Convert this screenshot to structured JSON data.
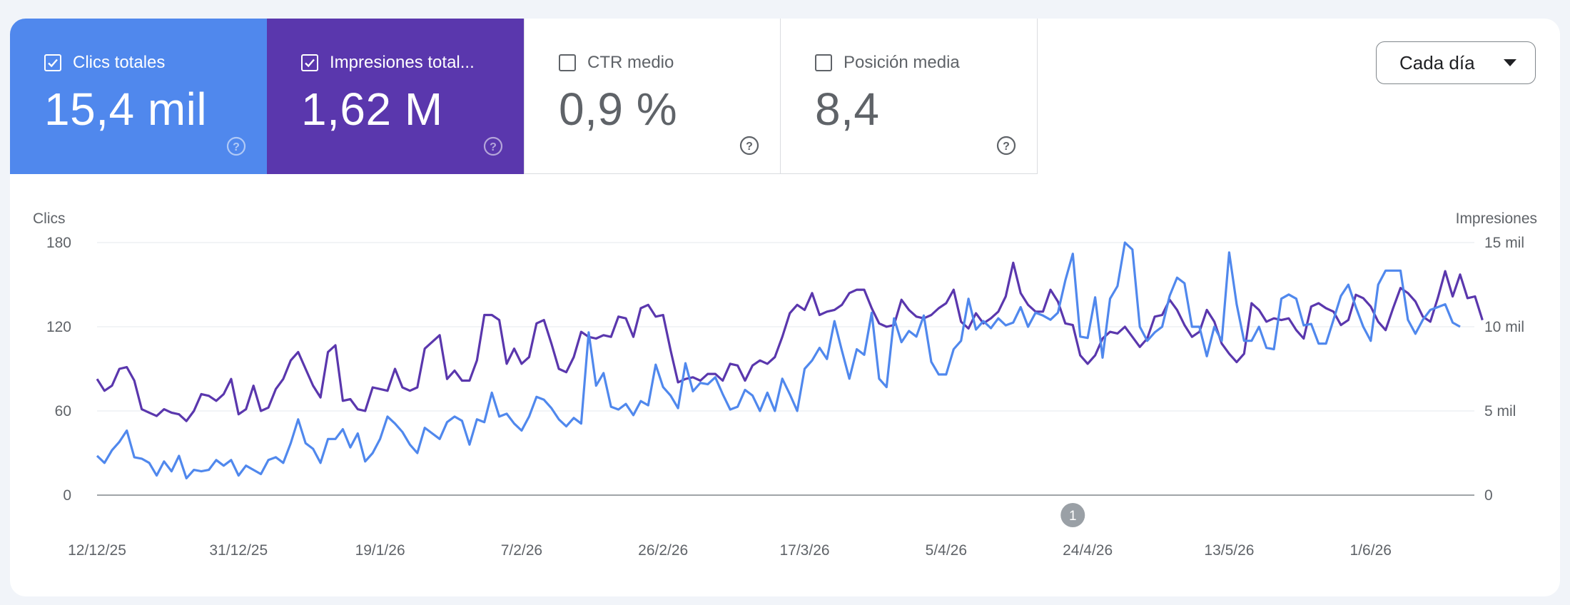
{
  "metrics": [
    {
      "label": "Clics totales",
      "value": "15,4 mil",
      "checked": true
    },
    {
      "label": "Impresiones total...",
      "value": "1,62 M",
      "checked": true
    },
    {
      "label": "CTR medio",
      "value": "0,9 %",
      "checked": false
    },
    {
      "label": "Posición media",
      "value": "8,4",
      "checked": false
    }
  ],
  "granularity": {
    "label": "Cada día"
  },
  "colors": {
    "clicks": "#5088ed",
    "impressions": "#5a37ad",
    "grid": "#e6e8ec",
    "axis": "#80868b",
    "text": "#5f6368"
  },
  "chart_data": {
    "type": "line",
    "left_axis": {
      "label": "Clics",
      "ticks": [
        "180",
        "120",
        "60",
        "0"
      ],
      "range": [
        0,
        180
      ]
    },
    "right_axis": {
      "label": "Impresiones",
      "ticks": [
        "15 mil",
        "10 mil",
        "5 mil",
        "0"
      ],
      "range": [
        0,
        15000
      ]
    },
    "x_labels": [
      {
        "text": "12/12/25",
        "index": 0
      },
      {
        "text": "31/12/25",
        "index": 19
      },
      {
        "text": "19/1/26",
        "index": 38
      },
      {
        "text": "7/2/26",
        "index": 57
      },
      {
        "text": "26/2/26",
        "index": 76
      },
      {
        "text": "17/3/26",
        "index": 95
      },
      {
        "text": "5/4/26",
        "index": 114
      },
      {
        "text": "24/4/26",
        "index": 133
      },
      {
        "text": "13/5/26",
        "index": 152
      },
      {
        "text": "1/6/26",
        "index": 171
      }
    ],
    "annotations": [
      {
        "text": "1",
        "index": 131
      }
    ],
    "series": [
      {
        "name": "Clics",
        "axis": "left",
        "values": [
          28,
          23,
          32,
          38,
          46,
          27,
          26,
          23,
          14,
          24,
          17,
          28,
          12,
          18,
          17,
          18,
          25,
          21,
          25,
          14,
          21,
          18,
          15,
          25,
          27,
          23,
          37,
          54,
          37,
          33,
          23,
          40,
          40,
          47,
          34,
          44,
          24,
          30,
          40,
          56,
          51,
          45,
          36,
          30,
          48,
          44,
          40,
          52,
          56,
          53,
          36,
          54,
          52,
          73,
          56,
          58,
          51,
          46,
          56,
          70,
          68,
          62,
          54,
          49,
          55,
          51,
          116,
          78,
          87,
          63,
          61,
          65,
          57,
          67,
          64,
          93,
          77,
          71,
          62,
          94,
          74,
          80,
          79,
          84,
          72,
          61,
          63,
          75,
          71,
          60,
          73,
          60,
          83,
          72,
          60,
          90,
          96,
          105,
          97,
          124,
          103,
          83,
          104,
          100,
          130,
          83,
          77,
          126,
          109,
          117,
          113,
          128,
          95,
          86,
          86,
          104,
          110,
          140,
          118,
          124,
          119,
          126,
          121,
          123,
          134,
          120,
          130,
          128,
          125,
          130,
          153,
          172,
          113,
          112,
          141,
          98,
          140,
          149,
          180,
          175,
          120,
          110,
          116,
          120,
          142,
          155,
          151,
          120,
          120,
          99,
          120,
          110,
          173,
          136,
          110,
          110,
          120,
          105,
          104,
          140,
          143,
          140,
          121,
          122,
          108,
          108,
          125,
          142,
          150,
          134,
          120,
          110,
          150,
          160,
          160,
          160,
          125,
          115,
          125,
          132,
          134,
          136,
          123,
          120
        ]
      },
      {
        "name": "Impresiones",
        "axis": "right",
        "values": [
          6900,
          6200,
          6500,
          7500,
          7600,
          6800,
          5100,
          4900,
          4700,
          5100,
          4900,
          4800,
          4400,
          5000,
          6000,
          5900,
          5600,
          6000,
          6900,
          4800,
          5100,
          6500,
          5000,
          5200,
          6300,
          6900,
          8000,
          8500,
          7500,
          6500,
          5800,
          8500,
          8900,
          5600,
          5700,
          5100,
          5000,
          6400,
          6300,
          6200,
          7500,
          6400,
          6200,
          6400,
          8700,
          9100,
          9500,
          6900,
          7400,
          6800,
          6800,
          8000,
          10700,
          10700,
          10400,
          7800,
          8700,
          7800,
          8200,
          10200,
          10400,
          9000,
          7500,
          7300,
          8200,
          9700,
          9400,
          9300,
          9500,
          9400,
          10600,
          10500,
          9400,
          11100,
          11300,
          10600,
          10700,
          8600,
          6700,
          6900,
          7000,
          6800,
          7200,
          7200,
          6800,
          7800,
          7700,
          6800,
          7700,
          8000,
          7800,
          8200,
          9400,
          10800,
          11300,
          11000,
          12000,
          10700,
          10900,
          11000,
          11300,
          12000,
          12200,
          12200,
          11100,
          10200,
          10000,
          10100,
          11600,
          11000,
          10600,
          10500,
          10700,
          11100,
          11400,
          12200,
          10300,
          9900,
          10800,
          10200,
          10500,
          10900,
          11800,
          13800,
          12000,
          11300,
          10900,
          10900,
          12200,
          11500,
          10200,
          10100,
          8300,
          7800,
          8300,
          9300,
          9700,
          9600,
          10000,
          9400,
          8800,
          9300,
          10600,
          10700,
          11600,
          11000,
          10100,
          9400,
          9700,
          11000,
          10300,
          9000,
          8400,
          7900,
          8400,
          11400,
          11000,
          10300,
          10500,
          10400,
          10500,
          9800,
          9300,
          11200,
          11400,
          11100,
          10900,
          10100,
          10400,
          11900,
          11700,
          11200,
          10300,
          9800,
          11100,
          12300,
          12000,
          11500,
          10600,
          10300,
          11700,
          13300,
          11800,
          13100,
          11700,
          11800,
          10400
        ]
      }
    ]
  }
}
